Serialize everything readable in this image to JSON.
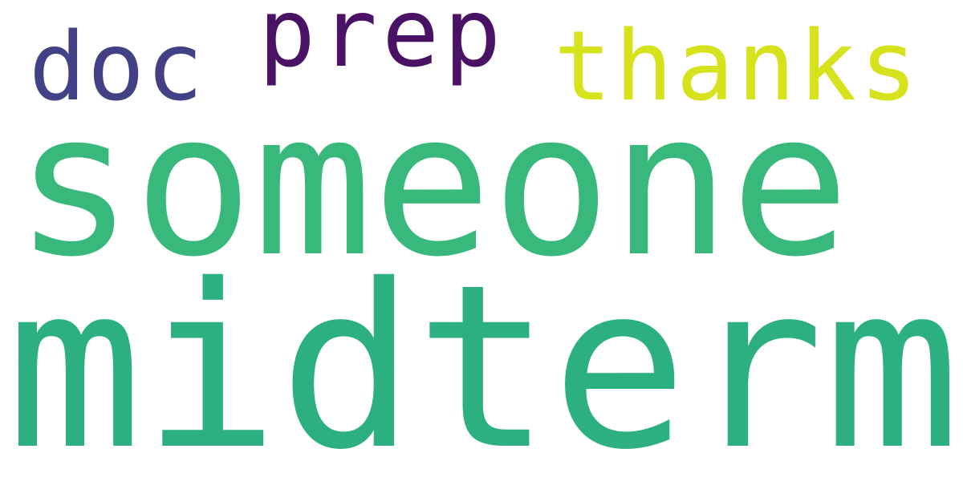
{
  "words": [
    {
      "text": "midterm",
      "color": "#2db07f"
    },
    {
      "text": "someone",
      "color": "#38b87b"
    },
    {
      "text": "thanks",
      "color": "#d6e21b"
    },
    {
      "text": "prep",
      "color": "#4a1265"
    },
    {
      "text": "doc",
      "color": "#424186"
    }
  ]
}
